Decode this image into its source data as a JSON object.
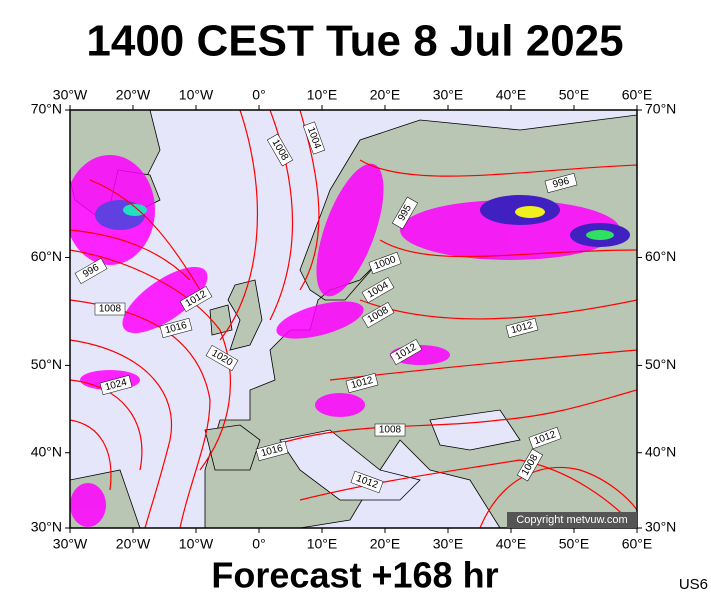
{
  "header": {
    "title": "1400 CEST Tue 8 Jul 2025"
  },
  "map": {
    "lon_ticks": [
      {
        "value": -30,
        "label": "30°W"
      },
      {
        "value": -20,
        "label": "20°W"
      },
      {
        "value": -10,
        "label": "10°W"
      },
      {
        "value": 0,
        "label": "0°"
      },
      {
        "value": 10,
        "label": "10°E"
      },
      {
        "value": 20,
        "label": "20°E"
      },
      {
        "value": 30,
        "label": "30°E"
      },
      {
        "value": 40,
        "label": "40°E"
      },
      {
        "value": 50,
        "label": "50°E"
      },
      {
        "value": 60,
        "label": "60°E"
      }
    ],
    "lat_ticks": [
      {
        "value": 30,
        "label": "30°N"
      },
      {
        "value": 40,
        "label": "40°N"
      },
      {
        "value": 50,
        "label": "50°N"
      },
      {
        "value": 60,
        "label": "60°N"
      },
      {
        "value": 70,
        "label": "70°N"
      }
    ],
    "isobar_labels": [
      "1004",
      "1008",
      "996",
      "995",
      "1000",
      "996",
      "1008",
      "1012",
      "1016",
      "1020",
      "1024",
      "1004",
      "1008",
      "1012",
      "1012",
      "1012",
      "1016",
      "1008",
      "1012",
      "1012",
      "1008"
    ],
    "copyright": "Copyright metvuw.com"
  },
  "footer": {
    "label": "Forecast +168 hr",
    "code": "US6"
  }
}
